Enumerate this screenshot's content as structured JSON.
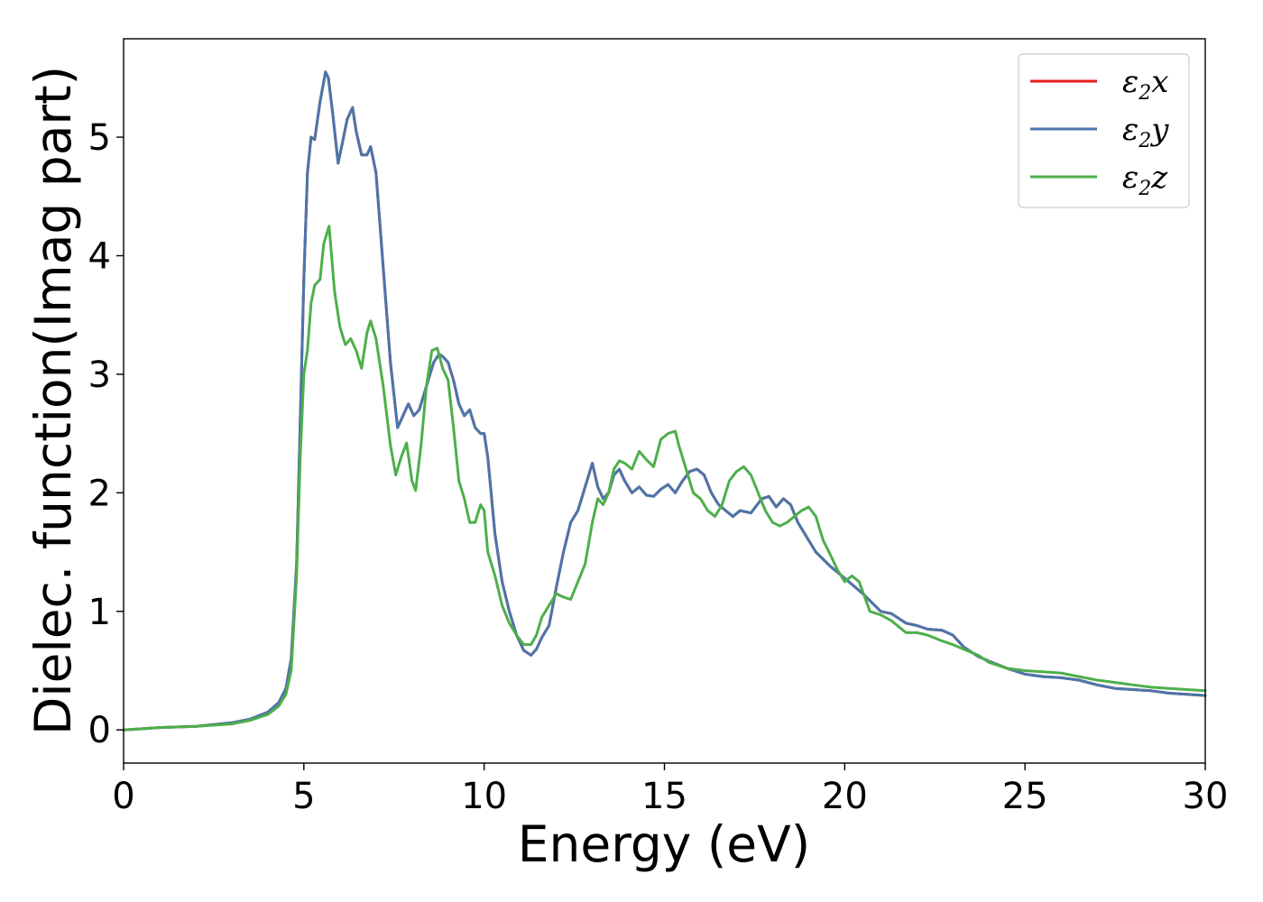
{
  "chart_data": {
    "type": "line",
    "title": "",
    "xlabel": "Energy (eV)",
    "ylabel": "Dielec. function(Imag part)",
    "xlim": [
      0,
      30
    ],
    "ylim": [
      -0.28,
      5.83
    ],
    "xticks": [
      "0",
      "5",
      "10",
      "15",
      "20",
      "25",
      "30"
    ],
    "yticks": [
      "0",
      "1",
      "2",
      "3",
      "4",
      "5"
    ],
    "grid": false,
    "legend_position": "top-right",
    "series": [
      {
        "name": "ε2x",
        "legend_base": "ε",
        "legend_sub": "2",
        "legend_var": "x",
        "color": "#e41a1c",
        "x": [
          0,
          1,
          2,
          3,
          3.5,
          4,
          4.3,
          4.5,
          4.65,
          4.8,
          4.9,
          5.0,
          5.1,
          5.2,
          5.3,
          5.45,
          5.6,
          5.68,
          5.8,
          5.95,
          6.1,
          6.2,
          6.35,
          6.45,
          6.6,
          6.75,
          6.85,
          7.0,
          7.2,
          7.4,
          7.6,
          7.75,
          7.9,
          8.05,
          8.2,
          8.4,
          8.6,
          8.75,
          8.85,
          9.0,
          9.15,
          9.3,
          9.45,
          9.6,
          9.75,
          9.9,
          10.0,
          10.1,
          10.3,
          10.5,
          10.7,
          10.9,
          11.1,
          11.3,
          11.45,
          11.6,
          11.8,
          12.0,
          12.2,
          12.4,
          12.6,
          12.8,
          13.0,
          13.15,
          13.3,
          13.45,
          13.6,
          13.75,
          13.9,
          14.1,
          14.3,
          14.5,
          14.7,
          14.9,
          15.1,
          15.3,
          15.5,
          15.7,
          15.9,
          16.1,
          16.3,
          16.5,
          16.7,
          16.9,
          17.1,
          17.4,
          17.7,
          17.9,
          18.1,
          18.3,
          18.5,
          18.7,
          18.9,
          19.2,
          19.6,
          20.0,
          20.5,
          21.0,
          21.3,
          21.7,
          22.0,
          22.3,
          22.7,
          23.0,
          23.3,
          23.7,
          24.0,
          24.5,
          25.0,
          25.5,
          26.0,
          26.5,
          27.0,
          27.5,
          28.0,
          28.5,
          29.0,
          29.5,
          30.0
        ],
        "y": [
          0.0,
          0.02,
          0.03,
          0.06,
          0.09,
          0.15,
          0.23,
          0.35,
          0.6,
          1.4,
          2.6,
          3.8,
          4.7,
          5.0,
          4.98,
          5.3,
          5.55,
          5.5,
          5.2,
          4.78,
          5.0,
          5.15,
          5.25,
          5.05,
          4.85,
          4.85,
          4.92,
          4.7,
          3.9,
          3.1,
          2.55,
          2.65,
          2.75,
          2.65,
          2.7,
          2.9,
          3.1,
          3.17,
          3.15,
          3.1,
          2.95,
          2.75,
          2.65,
          2.7,
          2.55,
          2.5,
          2.5,
          2.3,
          1.65,
          1.25,
          1.0,
          0.8,
          0.67,
          0.63,
          0.68,
          0.78,
          0.88,
          1.2,
          1.5,
          1.75,
          1.85,
          2.05,
          2.25,
          2.05,
          1.95,
          2.0,
          2.15,
          2.2,
          2.1,
          2.0,
          2.05,
          1.98,
          1.97,
          2.03,
          2.07,
          2.0,
          2.1,
          2.18,
          2.2,
          2.15,
          2.0,
          1.9,
          1.85,
          1.8,
          1.85,
          1.83,
          1.95,
          1.97,
          1.88,
          1.95,
          1.9,
          1.75,
          1.65,
          1.5,
          1.38,
          1.28,
          1.15,
          1.0,
          0.98,
          0.9,
          0.88,
          0.85,
          0.84,
          0.8,
          0.7,
          0.62,
          0.58,
          0.52,
          0.47,
          0.45,
          0.44,
          0.42,
          0.38,
          0.35,
          0.34,
          0.33,
          0.31,
          0.3,
          0.29
        ]
      },
      {
        "name": "ε2y",
        "legend_base": "ε",
        "legend_sub": "2",
        "legend_var": "y",
        "color": "#4a76aa",
        "x": [
          0,
          1,
          2,
          3,
          3.5,
          4,
          4.3,
          4.5,
          4.65,
          4.8,
          4.9,
          5.0,
          5.1,
          5.2,
          5.3,
          5.45,
          5.6,
          5.68,
          5.8,
          5.95,
          6.1,
          6.2,
          6.35,
          6.45,
          6.6,
          6.75,
          6.85,
          7.0,
          7.2,
          7.4,
          7.6,
          7.75,
          7.9,
          8.05,
          8.2,
          8.4,
          8.6,
          8.75,
          8.85,
          9.0,
          9.15,
          9.3,
          9.45,
          9.6,
          9.75,
          9.9,
          10.0,
          10.1,
          10.3,
          10.5,
          10.7,
          10.9,
          11.1,
          11.3,
          11.45,
          11.6,
          11.8,
          12.0,
          12.2,
          12.4,
          12.6,
          12.8,
          13.0,
          13.15,
          13.3,
          13.45,
          13.6,
          13.75,
          13.9,
          14.1,
          14.3,
          14.5,
          14.7,
          14.9,
          15.1,
          15.3,
          15.5,
          15.7,
          15.9,
          16.1,
          16.3,
          16.5,
          16.7,
          16.9,
          17.1,
          17.4,
          17.7,
          17.9,
          18.1,
          18.3,
          18.5,
          18.7,
          18.9,
          19.2,
          19.6,
          20.0,
          20.5,
          21.0,
          21.3,
          21.7,
          22.0,
          22.3,
          22.7,
          23.0,
          23.3,
          23.7,
          24.0,
          24.5,
          25.0,
          25.5,
          26.0,
          26.5,
          27.0,
          27.5,
          28.0,
          28.5,
          29.0,
          29.5,
          30.0
        ],
        "y": [
          0.0,
          0.02,
          0.03,
          0.06,
          0.09,
          0.15,
          0.23,
          0.35,
          0.6,
          1.4,
          2.6,
          3.8,
          4.7,
          5.0,
          4.98,
          5.3,
          5.55,
          5.5,
          5.2,
          4.78,
          5.0,
          5.15,
          5.25,
          5.05,
          4.85,
          4.85,
          4.92,
          4.7,
          3.9,
          3.1,
          2.55,
          2.65,
          2.75,
          2.65,
          2.7,
          2.9,
          3.1,
          3.17,
          3.15,
          3.1,
          2.95,
          2.75,
          2.65,
          2.7,
          2.55,
          2.5,
          2.5,
          2.3,
          1.65,
          1.25,
          1.0,
          0.8,
          0.67,
          0.63,
          0.68,
          0.78,
          0.88,
          1.2,
          1.5,
          1.75,
          1.85,
          2.05,
          2.25,
          2.05,
          1.95,
          2.0,
          2.15,
          2.2,
          2.1,
          2.0,
          2.05,
          1.98,
          1.97,
          2.03,
          2.07,
          2.0,
          2.1,
          2.18,
          2.2,
          2.15,
          2.0,
          1.9,
          1.85,
          1.8,
          1.85,
          1.83,
          1.95,
          1.97,
          1.88,
          1.95,
          1.9,
          1.75,
          1.65,
          1.5,
          1.38,
          1.28,
          1.15,
          1.0,
          0.98,
          0.9,
          0.88,
          0.85,
          0.84,
          0.8,
          0.7,
          0.62,
          0.58,
          0.52,
          0.47,
          0.45,
          0.44,
          0.42,
          0.38,
          0.35,
          0.34,
          0.33,
          0.31,
          0.3,
          0.29
        ]
      },
      {
        "name": "ε2z",
        "legend_base": "ε",
        "legend_sub": "2",
        "legend_var": "z",
        "color": "#4daf4a",
        "x": [
          0,
          1,
          2,
          3,
          3.5,
          4,
          4.3,
          4.5,
          4.65,
          4.8,
          4.9,
          5.0,
          5.1,
          5.2,
          5.3,
          5.45,
          5.55,
          5.7,
          5.85,
          6.0,
          6.15,
          6.3,
          6.45,
          6.6,
          6.75,
          6.85,
          7.0,
          7.2,
          7.4,
          7.55,
          7.7,
          7.85,
          8.0,
          8.1,
          8.25,
          8.4,
          8.55,
          8.7,
          8.85,
          9.0,
          9.15,
          9.3,
          9.45,
          9.6,
          9.75,
          9.9,
          10.0,
          10.1,
          10.3,
          10.5,
          10.7,
          10.9,
          11.1,
          11.3,
          11.45,
          11.6,
          11.8,
          12.0,
          12.2,
          12.4,
          12.6,
          12.8,
          13.0,
          13.15,
          13.3,
          13.45,
          13.6,
          13.75,
          13.9,
          14.1,
          14.3,
          14.5,
          14.7,
          14.9,
          15.1,
          15.3,
          15.4,
          15.6,
          15.8,
          16.0,
          16.2,
          16.4,
          16.6,
          16.8,
          17.0,
          17.2,
          17.4,
          17.6,
          17.8,
          18.0,
          18.2,
          18.4,
          18.6,
          18.8,
          19.0,
          19.2,
          19.4,
          19.6,
          19.8,
          20.0,
          20.2,
          20.4,
          20.7,
          21.0,
          21.3,
          21.7,
          22.0,
          22.3,
          22.7,
          23.0,
          23.3,
          23.7,
          24.0,
          24.5,
          25.0,
          25.5,
          26.0,
          26.5,
          27.0,
          27.5,
          28.0,
          28.5,
          29.0,
          29.5,
          30.0
        ],
        "y": [
          0.0,
          0.02,
          0.03,
          0.05,
          0.08,
          0.13,
          0.2,
          0.3,
          0.5,
          1.3,
          2.3,
          3.0,
          3.2,
          3.6,
          3.75,
          3.8,
          4.1,
          4.25,
          3.7,
          3.4,
          3.25,
          3.3,
          3.2,
          3.05,
          3.35,
          3.45,
          3.3,
          2.9,
          2.4,
          2.15,
          2.3,
          2.42,
          2.1,
          2.02,
          2.4,
          2.9,
          3.2,
          3.22,
          3.05,
          2.95,
          2.55,
          2.1,
          1.95,
          1.75,
          1.75,
          1.9,
          1.85,
          1.5,
          1.3,
          1.05,
          0.9,
          0.8,
          0.72,
          0.72,
          0.8,
          0.95,
          1.05,
          1.15,
          1.12,
          1.1,
          1.25,
          1.4,
          1.75,
          1.95,
          1.9,
          2.0,
          2.2,
          2.27,
          2.25,
          2.2,
          2.35,
          2.28,
          2.22,
          2.45,
          2.5,
          2.52,
          2.4,
          2.2,
          2.0,
          1.95,
          1.85,
          1.8,
          1.9,
          2.1,
          2.18,
          2.22,
          2.15,
          2.0,
          1.85,
          1.75,
          1.72,
          1.75,
          1.8,
          1.85,
          1.88,
          1.8,
          1.6,
          1.48,
          1.35,
          1.25,
          1.3,
          1.25,
          1.0,
          0.97,
          0.92,
          0.82,
          0.82,
          0.8,
          0.75,
          0.72,
          0.68,
          0.63,
          0.57,
          0.52,
          0.5,
          0.49,
          0.48,
          0.45,
          0.42,
          0.4,
          0.38,
          0.36,
          0.35,
          0.34,
          0.33
        ]
      }
    ]
  }
}
